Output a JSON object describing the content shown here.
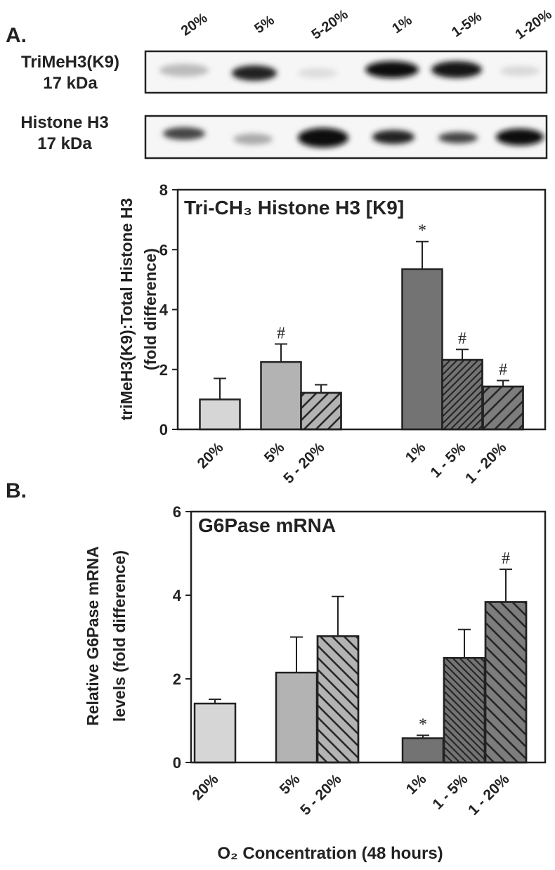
{
  "panels": [
    "A.",
    "B."
  ],
  "blot": {
    "lanes": [
      "20%",
      "5%",
      "5-20%",
      "1%",
      "1-5%",
      "1-20%"
    ],
    "rows": [
      {
        "name": "TriMeH3(K9)",
        "size": "17 kDa"
      },
      {
        "name": "Histone H3",
        "size": "17 kDa"
      }
    ]
  },
  "chart_data": [
    {
      "type": "bar",
      "title": "Tri-CH₃ Histone H3 [K9]",
      "y_label": [
        "triMeH3(K9):Total Histone H3",
        "(fold difference)"
      ],
      "categories": [
        "20%",
        "5%",
        "5 - 20%",
        "1%",
        "1 - 5%",
        "1 - 20%"
      ],
      "values": [
        1.0,
        2.25,
        1.22,
        5.35,
        2.32,
        1.43
      ],
      "errors": [
        0.7,
        0.6,
        0.27,
        0.92,
        0.35,
        0.2
      ],
      "markers": [
        null,
        "#",
        null,
        "*",
        "#",
        "#"
      ],
      "colors": [
        "#d6d6d6",
        "#b3b3b3",
        "#b3b3b3",
        "#737373",
        "#737373",
        "#7d7d7d"
      ],
      "hatch": [
        null,
        null,
        "down",
        null,
        "dense-down",
        "down"
      ],
      "ylim": [
        0,
        8
      ],
      "yticks": [
        0,
        2,
        4,
        6,
        8
      ]
    },
    {
      "type": "bar",
      "title": "G6Pase mRNA",
      "y_label": [
        "Relative G6Pase mRNA",
        "levels (fold difference)"
      ],
      "x_label": "O₂ Concentration (48 hours)",
      "categories": [
        "20%",
        "5%",
        "5 - 20%",
        "1%",
        "1 - 5%",
        "1 - 20%"
      ],
      "values": [
        1.41,
        2.15,
        3.02,
        0.58,
        2.5,
        3.84
      ],
      "errors": [
        0.1,
        0.85,
        0.95,
        0.07,
        0.68,
        0.78
      ],
      "markers": [
        null,
        null,
        null,
        "*",
        null,
        "#"
      ],
      "colors": [
        "#d6d6d6",
        "#b3b3b3",
        "#b3b3b3",
        "#737373",
        "#737373",
        "#7d7d7d"
      ],
      "hatch": [
        null,
        null,
        "up",
        null,
        "dense-up",
        "up"
      ],
      "ylim": [
        0,
        6
      ],
      "yticks": [
        0,
        2,
        4,
        6
      ]
    }
  ]
}
